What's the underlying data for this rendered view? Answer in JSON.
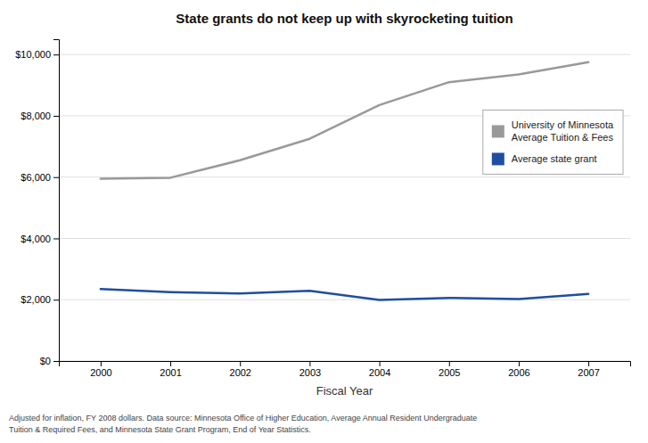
{
  "chart_data": {
    "type": "line",
    "title": "State grants do not keep up with skyrocketing tuition",
    "x_label": "Fiscal Year",
    "x": [
      2000,
      2001,
      2002,
      2003,
      2004,
      2005,
      2006,
      2007
    ],
    "series": [
      {
        "name": "University of Minnesota\nAverage Tuition & Fees",
        "color": "#999999",
        "values": [
          5950,
          5980,
          6550,
          7250,
          8350,
          9100,
          9350,
          9750
        ]
      },
      {
        "name": "Average state grant",
        "color": "#1f4ea1",
        "values": [
          2350,
          2250,
          2200,
          2290,
          1990,
          2060,
          2020,
          2190
        ]
      }
    ],
    "xlim": [
      1999.4,
      2007.6
    ],
    "xticks": [
      2000,
      2001,
      2002,
      2003,
      2004,
      2005,
      2006,
      2007
    ],
    "ylim": [
      0,
      10500
    ],
    "yticks": [
      {
        "value": 0,
        "label": "$0"
      },
      {
        "value": 2000,
        "label": "$2,000"
      },
      {
        "value": 4000,
        "label": "$4,000"
      },
      {
        "value": 6000,
        "label": "$6,000"
      },
      {
        "value": 8000,
        "label": "$8,000"
      },
      {
        "value": 10000,
        "label": "$10,000"
      }
    ],
    "grid": "y",
    "legend": "upper right",
    "annotations": [
      "Adjusted for inflation, FY 2008 dollars. Data source: Minnesota Office of Higher Education, Average Annual Resident Undergraduate",
      "Tuition & Required Fees, and Minnesota State Grant Program, End of Year Statistics."
    ]
  }
}
